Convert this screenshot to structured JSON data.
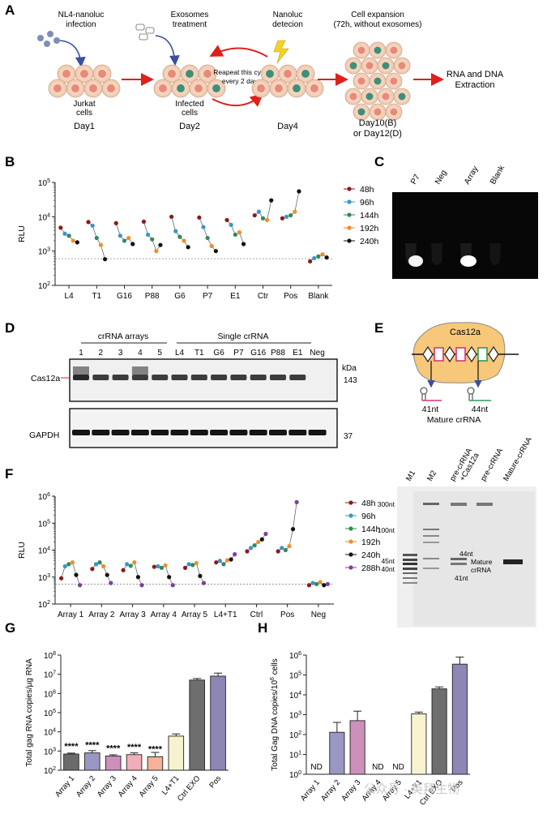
{
  "panel_letters": [
    "A",
    "B",
    "C",
    "D",
    "E",
    "F",
    "G",
    "H"
  ],
  "panelA": {
    "steps": [
      {
        "top1": "NL4-nanoluc",
        "top2": "infection",
        "bottom1": "Jurkat",
        "bottom2": "cells",
        "day": "Day1"
      },
      {
        "top1": "Exosomes",
        "top2": "treatment",
        "bottom1": "Infected",
        "bottom2": "cells",
        "day": "Day2"
      },
      {
        "top1": "Nanoluc",
        "top2": "detecion",
        "bottom1": "",
        "bottom2": "",
        "day": "Day4"
      },
      {
        "top1": "Cell expansion",
        "top2": "(72h, without exosomes)",
        "bottom1": "",
        "bottom2": "",
        "day": "Day10(B)",
        "day2": "or Day12(D)"
      }
    ],
    "repeat1": "Reapeat this cycle",
    "repeat2": "every 2 days",
    "final1": "RNA and DNA",
    "final2": "Extraction"
  },
  "chart_data": [
    {
      "id": "B",
      "type": "scatter",
      "yscale": "log",
      "ylim": [
        100,
        100000
      ],
      "ylabel": "RLU",
      "ytick_labels": [
        "10^2",
        "10^3",
        "10^4",
        "10^5"
      ],
      "categories": [
        "L4",
        "T1",
        "G16",
        "P88",
        "G6",
        "P7",
        "E1",
        "Ctr",
        "Pos",
        "Blank"
      ],
      "legend_placement": "right",
      "reference_line": 600,
      "series": [
        {
          "name": "48h",
          "color": "#8b1a1a",
          "values": [
            4800,
            7000,
            6500,
            7200,
            10000,
            9500,
            8000,
            11000,
            9000,
            500
          ]
        },
        {
          "name": "96h",
          "color": "#3a95c9",
          "values": [
            3200,
            5500,
            2800,
            3000,
            3800,
            5000,
            5800,
            14000,
            10000,
            620
          ]
        },
        {
          "name": "144h",
          "color": "#2e8b57",
          "values": [
            2800,
            2400,
            2000,
            2200,
            2600,
            2400,
            3000,
            9000,
            11000,
            700
          ]
        },
        {
          "name": "192h",
          "color": "#f08c2a",
          "values": [
            2000,
            1500,
            2400,
            1000,
            2000,
            1400,
            3500,
            8000,
            14000,
            800
          ]
        },
        {
          "name": "240h",
          "color": "#111111",
          "values": [
            1800,
            580,
            1600,
            1500,
            1300,
            1000,
            1600,
            30000,
            55000,
            650
          ]
        }
      ]
    },
    {
      "id": "F",
      "type": "scatter",
      "yscale": "log",
      "ylim": [
        100,
        1000000
      ],
      "ylabel": "RLU",
      "ytick_labels": [
        "10^2",
        "10^3",
        "10^4",
        "10^5",
        "10^6"
      ],
      "categories": [
        "Array 1",
        "Array 2",
        "Array 3",
        "Array 4",
        "Array 5",
        "L4+T1",
        "Ctrl",
        "Pos",
        "Neg"
      ],
      "legend_placement": "right",
      "reference_line": 550,
      "series": [
        {
          "name": "48h",
          "color": "#8b1a1a",
          "values": [
            900,
            2000,
            1800,
            2400,
            2200,
            3500,
            9000,
            9000,
            500
          ]
        },
        {
          "name": "96h",
          "color": "#3a95c9",
          "values": [
            2500,
            3000,
            3000,
            2500,
            3000,
            4000,
            12000,
            12000,
            600
          ]
        },
        {
          "name": "144h",
          "color": "#2e8b57",
          "values": [
            3000,
            3500,
            2600,
            2200,
            2800,
            3000,
            15000,
            10000,
            550
          ]
        },
        {
          "name": "192h",
          "color": "#f08c2a",
          "values": [
            3500,
            2500,
            3500,
            2700,
            3300,
            4200,
            20000,
            14000,
            650
          ]
        },
        {
          "name": "240h",
          "color": "#111111",
          "values": [
            1200,
            1200,
            1000,
            1000,
            1100,
            4500,
            25000,
            60000,
            500
          ]
        },
        {
          "name": "288h",
          "color": "#7b3fa0",
          "values": [
            500,
            600,
            500,
            500,
            600,
            7000,
            40000,
            600000,
            550
          ]
        }
      ]
    },
    {
      "id": "G",
      "type": "bar",
      "yscale": "log",
      "ylim": [
        100,
        100000000
      ],
      "ylabel": "Total gag RNA copies/µg RNA",
      "ytick_labels": [
        "10^2",
        "10^3",
        "10^4",
        "10^5",
        "10^6",
        "10^7",
        "10^8"
      ],
      "categories": [
        "Array 1",
        "Array 2",
        "Array 3",
        "Array 4",
        "Array 5",
        "L4+T1",
        "Ctrl EXO",
        "Pos"
      ],
      "values": [
        700,
        800,
        550,
        650,
        500,
        6000,
        5000000,
        8000000
      ],
      "errors": [
        80,
        250,
        90,
        150,
        350,
        1800,
        1000000,
        3500000
      ],
      "colors": [
        "#6b6b6b",
        "#9a97c4",
        "#cc90bb",
        "#f2aeb9",
        "#f4b398",
        "#f8f3cf",
        "#6e6e6e",
        "#8e86b5"
      ],
      "annotations": [
        "****",
        "****",
        "****",
        "****",
        "****",
        "",
        "",
        ""
      ]
    },
    {
      "id": "H",
      "type": "bar",
      "yscale": "log",
      "ylim": [
        1,
        1000000
      ],
      "ylabel": "Total Gag DNA copies/10^6 cells",
      "ytick_labels": [
        "10^0",
        "10^1",
        "10^2",
        "10^3",
        "10^4",
        "10^5",
        "10^6"
      ],
      "categories": [
        "Array 1",
        "Array 2",
        "Array 3",
        "Array 4",
        "Array 5",
        "L4+T1",
        "Ctrl EXO",
        "Pos"
      ],
      "values": [
        null,
        130,
        500,
        null,
        null,
        1100,
        20000,
        350000
      ],
      "errors": [
        null,
        280,
        1000,
        null,
        null,
        250,
        5000,
        450000
      ],
      "colors": [
        "#6b6b6b",
        "#9a97c4",
        "#cc90bb",
        "#f2aeb9",
        "#f4b398",
        "#f8f3cf",
        "#6e6e6e",
        "#8e86b5"
      ],
      "annotations": [
        "ND",
        "",
        "",
        "ND",
        "ND",
        "",
        "",
        ""
      ]
    }
  ],
  "panelC": {
    "labels": [
      "P7",
      "Neg",
      "Array",
      "Blank"
    ]
  },
  "panelD": {
    "group1": "crRNA arrays",
    "group2": "Single crRNA",
    "lanes": [
      "1",
      "2",
      "3",
      "4",
      "5",
      "L4",
      "T1",
      "G6",
      "P7",
      "G16",
      "P88",
      "E1",
      "Neg"
    ],
    "kda": "kDa",
    "cas_label": "Cas12a",
    "cas_kda": "143",
    "gapdh_label": "GAPDH",
    "gapdh_kda": "37"
  },
  "panelE": {
    "protein": "Cas12a",
    "left_nt": "41nt",
    "right_nt": "44nt",
    "caption": "Mature crRNA"
  },
  "panelGel": {
    "lanes": [
      "M1",
      "M2",
      "pre-crRNA",
      "+Cas12a",
      "pre-crRNA",
      "Mature-crRNA"
    ],
    "markers": [
      "300nt",
      "100nt",
      "45nt",
      "40nt"
    ],
    "annot_44": "44nt",
    "annot_mature": "Mature",
    "annot_crrna": "crRNA",
    "annot_41": "41nt"
  },
  "watermark": "公众号 · 英拜生物"
}
